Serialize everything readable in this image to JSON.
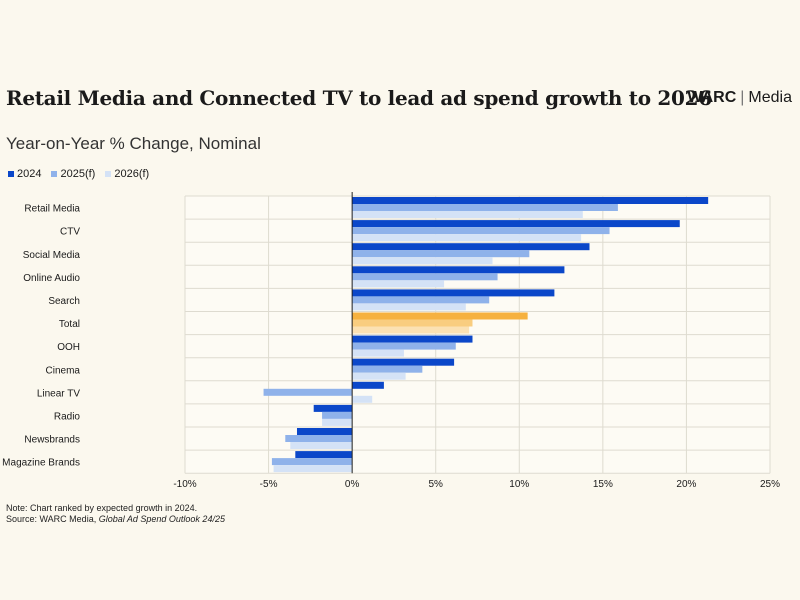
{
  "header": {
    "title": "Retail Media and Connected TV to lead ad spend growth to 2026",
    "brand_name": "WARC",
    "brand_separator": "|",
    "brand_sub": "Media",
    "subtitle": "Year-on-Year % Change, Nominal"
  },
  "colors": {
    "s2024": "#0b47c9",
    "s2025": "#8fb2ea",
    "s2026": "#d4e2f6",
    "total2024": "#f6b13f",
    "total2025": "#f9cd7f",
    "total2026": "#fbe1b3",
    "grid": "#dedbd0",
    "zero_line": "#222222",
    "text": "#1a1a1a"
  },
  "chart_data": {
    "type": "bar",
    "orientation": "horizontal",
    "categories": [
      "Retail Media",
      "CTV",
      "Social Media",
      "Online Audio",
      "Search",
      "Total",
      "OOH",
      "Cinema",
      "Linear TV",
      "Radio",
      "Newsbrands",
      "Magazine Brands"
    ],
    "highlight_category": "Total",
    "series": [
      {
        "name": "2024",
        "values": [
          21.3,
          19.6,
          14.2,
          12.7,
          12.1,
          10.5,
          7.2,
          6.1,
          1.9,
          -2.3,
          -3.3,
          -3.4
        ]
      },
      {
        "name": "2025(f)",
        "values": [
          15.9,
          15.4,
          10.6,
          8.7,
          8.2,
          7.2,
          6.2,
          4.2,
          -5.3,
          -1.8,
          -4.0,
          -4.8
        ]
      },
      {
        "name": "2026(f)",
        "values": [
          13.8,
          13.7,
          8.4,
          5.5,
          6.8,
          7.0,
          3.1,
          3.2,
          1.2,
          -1.8,
          -3.7,
          -4.7
        ]
      }
    ],
    "x_ticks": [
      "-10%",
      "-5%",
      "0%",
      "5%",
      "10%",
      "15%",
      "20%",
      "25%"
    ],
    "xlim": [
      -10,
      25
    ],
    "legend_position": "top-left",
    "grid": true
  },
  "note": {
    "line1": "Note: Chart ranked by expected growth in 2024.",
    "source_prefix": "Source: WARC Media, ",
    "source_title": "Global Ad Spend Outlook 24/25"
  }
}
